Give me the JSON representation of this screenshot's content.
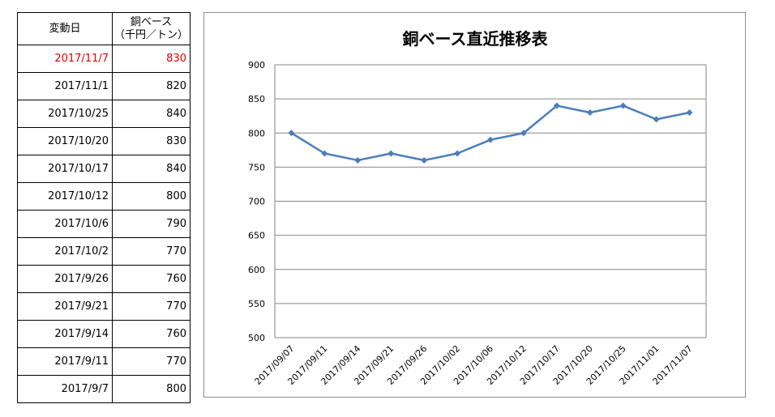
{
  "table": {
    "header_date": "変動日",
    "header_price_line1": "銅ベース",
    "header_price_line2": "（千円／トン）",
    "rows": [
      {
        "date": "2017/11/7",
        "price": "830"
      },
      {
        "date": "2017/11/1",
        "price": "820"
      },
      {
        "date": "2017/10/25",
        "price": "840"
      },
      {
        "date": "2017/10/20",
        "price": "830"
      },
      {
        "date": "2017/10/17",
        "price": "840"
      },
      {
        "date": "2017/10/12",
        "price": "800"
      },
      {
        "date": "2017/10/6",
        "price": "790"
      },
      {
        "date": "2017/10/2",
        "price": "770"
      },
      {
        "date": "2017/9/26",
        "price": "760"
      },
      {
        "date": "2017/9/21",
        "price": "770"
      },
      {
        "date": "2017/9/14",
        "price": "760"
      },
      {
        "date": "2017/9/11",
        "price": "770"
      },
      {
        "date": "2017/9/7",
        "price": "800"
      }
    ],
    "highlight_color": "#e00000"
  },
  "chart_data": {
    "type": "line",
    "title": "銅ベース直近推移表",
    "xlabel": "",
    "ylabel": "",
    "categories": [
      "2017/09/07",
      "2017/09/11",
      "2017/09/14",
      "2017/09/21",
      "2017/09/26",
      "2017/10/02",
      "2017/10/06",
      "2017/10/12",
      "2017/10/17",
      "2017/10/20",
      "2017/10/25",
      "2017/11/01",
      "2017/11/07"
    ],
    "series": [
      {
        "values": [
          800,
          770,
          760,
          770,
          760,
          770,
          790,
          800,
          840,
          830,
          840,
          820,
          830
        ],
        "color": "#4a7ebb"
      }
    ],
    "ylim": [
      500,
      900
    ],
    "yticks": [
      500,
      550,
      600,
      650,
      700,
      750,
      800,
      850,
      900
    ],
    "grid": true,
    "legend": "none",
    "marker": "diamond"
  }
}
